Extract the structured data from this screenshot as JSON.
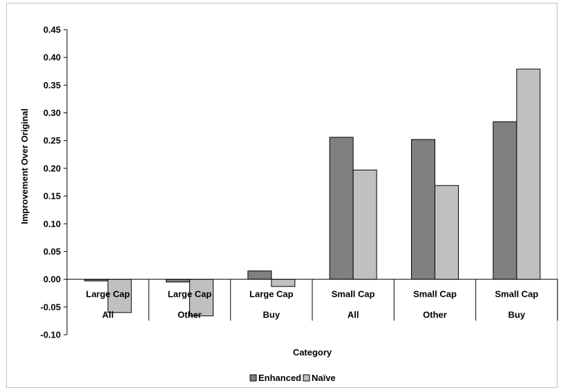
{
  "chart_data": {
    "type": "bar",
    "title": "",
    "xlabel": "Category",
    "ylabel": "Improvement Over Original",
    "ylim": [
      -0.1,
      0.45
    ],
    "ytick_step": 0.05,
    "yticks": [
      "-0.10",
      "-0.05",
      "0.00",
      "0.05",
      "0.10",
      "0.15",
      "0.20",
      "0.25",
      "0.30",
      "0.35",
      "0.40",
      "0.45"
    ],
    "categories": [
      {
        "line1": "Large Cap",
        "line2": "All"
      },
      {
        "line1": "Large Cap",
        "line2": "Other"
      },
      {
        "line1": "Large Cap",
        "line2": "Buy"
      },
      {
        "line1": "Small Cap",
        "line2": "All"
      },
      {
        "line1": "Small Cap",
        "line2": "Other"
      },
      {
        "line1": "Small Cap",
        "line2": "Buy"
      }
    ],
    "series": [
      {
        "name": "Enhanced",
        "color": "#808080",
        "values": [
          -0.003,
          -0.005,
          0.015,
          0.256,
          0.252,
          0.284
        ]
      },
      {
        "name": "Naïve",
        "color": "#c0c0c0",
        "values": [
          -0.06,
          -0.066,
          -0.013,
          0.197,
          0.169,
          0.379
        ]
      }
    ],
    "legend_position": "bottom",
    "grid": false
  }
}
